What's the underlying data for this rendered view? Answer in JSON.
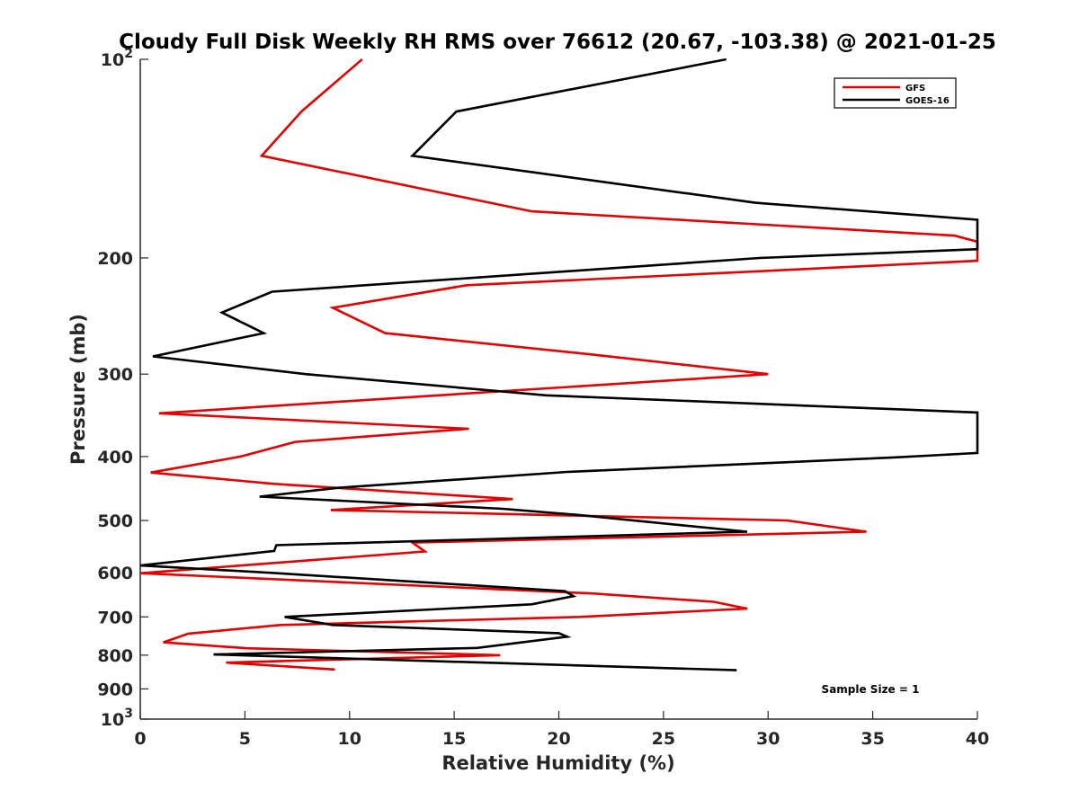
{
  "chart_data": {
    "type": "line",
    "title": "Cloudy Full Disk Weekly RH RMS over 76612 (20.67, -103.38) @ 2021-01-25",
    "xlabel": "Relative Humidity (%)",
    "ylabel": "Pressure (mb)",
    "xlim": [
      0,
      40
    ],
    "ylim": [
      100,
      1000
    ],
    "y_scale": "log",
    "y_reversed": true,
    "grid": false,
    "legend_position": "top-right",
    "x_ticks": [
      {
        "value": 0,
        "label": "0"
      },
      {
        "value": 5,
        "label": "5"
      },
      {
        "value": 10,
        "label": "10"
      },
      {
        "value": 15,
        "label": "15"
      },
      {
        "value": 20,
        "label": "20"
      },
      {
        "value": 25,
        "label": "25"
      },
      {
        "value": 30,
        "label": "30"
      },
      {
        "value": 35,
        "label": "35"
      },
      {
        "value": 40,
        "label": "40"
      }
    ],
    "y_ticks": [
      {
        "value": 100,
        "base": "10",
        "exp": "2"
      },
      {
        "value": 200,
        "label": "200"
      },
      {
        "value": 300,
        "label": "300"
      },
      {
        "value": 400,
        "label": "400"
      },
      {
        "value": 500,
        "label": "500"
      },
      {
        "value": 600,
        "label": "600"
      },
      {
        "value": 700,
        "label": "700"
      },
      {
        "value": 800,
        "label": "800"
      },
      {
        "value": 900,
        "label": "900"
      },
      {
        "value": 1000,
        "base": "10",
        "exp": "3"
      }
    ],
    "annotation": "Sample Size = 1",
    "series": [
      {
        "name": "GFS",
        "color": "#e30000",
        "points": [
          [
            10.6,
            100
          ],
          [
            7.7,
            120
          ],
          [
            5.8,
            140
          ],
          [
            18.7,
            170
          ],
          [
            38.9,
            185
          ],
          [
            40,
            189
          ],
          [
            40,
            202
          ],
          [
            15.6,
            220
          ],
          [
            9.2,
            238
          ],
          [
            11.7,
            260
          ],
          [
            21.5,
            280
          ],
          [
            30,
            300
          ],
          [
            0.9,
            344
          ],
          [
            15.7,
            363
          ],
          [
            7.4,
            380
          ],
          [
            4.8,
            400
          ],
          [
            0.5,
            423
          ],
          [
            6.4,
            440
          ],
          [
            17.8,
            464
          ],
          [
            9.1,
            482
          ],
          [
            30.9,
            500
          ],
          [
            34.7,
            520
          ],
          [
            13,
            540
          ],
          [
            13.6,
            557
          ],
          [
            0,
            601
          ],
          [
            21.6,
            645
          ],
          [
            27.4,
            664
          ],
          [
            29,
            680
          ],
          [
            21,
            700
          ],
          [
            6.7,
            720
          ],
          [
            2.3,
            742
          ],
          [
            1.1,
            765
          ],
          [
            5.1,
            781
          ],
          [
            17.2,
            800
          ],
          [
            4.1,
            821
          ],
          [
            9.3,
            841
          ]
        ]
      },
      {
        "name": "GOES-16",
        "color": "#000000",
        "points": [
          [
            28,
            100
          ],
          [
            15.1,
            120
          ],
          [
            13,
            140
          ],
          [
            29.4,
            165
          ],
          [
            40,
            175
          ],
          [
            40,
            194
          ],
          [
            29.6,
            200
          ],
          [
            6.3,
            225
          ],
          [
            3.9,
            242
          ],
          [
            5.9,
            260
          ],
          [
            0.6,
            282
          ],
          [
            7.9,
            300
          ],
          [
            19.4,
            323
          ],
          [
            40,
            343
          ],
          [
            40,
            395
          ],
          [
            36.2,
            401
          ],
          [
            20.4,
            422
          ],
          [
            9.5,
            446
          ],
          [
            5.7,
            460
          ],
          [
            17.3,
            480
          ],
          [
            20.8,
            490
          ],
          [
            29,
            520
          ],
          [
            6.5,
            545
          ],
          [
            6.4,
            556
          ],
          [
            0,
            585
          ],
          [
            6.2,
            600
          ],
          [
            14.5,
            623
          ],
          [
            20.3,
            640
          ],
          [
            20.7,
            651
          ],
          [
            18.7,
            670
          ],
          [
            6.9,
            700
          ],
          [
            9.2,
            720
          ],
          [
            20,
            741
          ],
          [
            20.4,
            750
          ],
          [
            16.1,
            780
          ],
          [
            3.5,
            798
          ],
          [
            28.5,
            843
          ]
        ]
      }
    ]
  }
}
